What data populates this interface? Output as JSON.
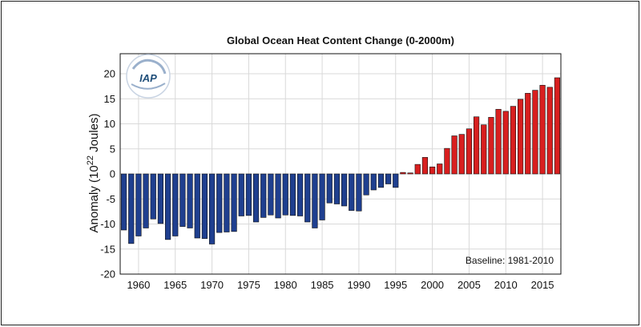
{
  "chart_data": {
    "type": "bar",
    "title": "Global Ocean Heat Content Change (0-2000m)",
    "ylabel_pre": "Anomaly (10",
    "ylabel_sup": "22",
    "ylabel_post": " Joules)",
    "xlabel": "",
    "ylim": [
      -20,
      24
    ],
    "xlim": [
      1957.5,
      2017.5
    ],
    "yticks": [
      -20,
      -15,
      -10,
      -5,
      0,
      5,
      10,
      15,
      20
    ],
    "xticks": [
      1960,
      1965,
      1970,
      1975,
      1980,
      1985,
      1990,
      1995,
      2000,
      2005,
      2010,
      2015
    ],
    "grid": true,
    "note": "Baseline: 1981-2010",
    "logo_text": "IAP",
    "colors": {
      "negative": "#1f3f8f",
      "positive": "#d81f1f",
      "edge": "#111111",
      "grid": "#d9d9d9"
    },
    "years": [
      1958,
      1959,
      1960,
      1961,
      1962,
      1963,
      1964,
      1965,
      1966,
      1967,
      1968,
      1969,
      1970,
      1971,
      1972,
      1973,
      1974,
      1975,
      1976,
      1977,
      1978,
      1979,
      1980,
      1981,
      1982,
      1983,
      1984,
      1985,
      1986,
      1987,
      1988,
      1989,
      1990,
      1991,
      1992,
      1993,
      1994,
      1995,
      1996,
      1997,
      1998,
      1999,
      2000,
      2001,
      2002,
      2003,
      2004,
      2005,
      2006,
      2007,
      2008,
      2009,
      2010,
      2011,
      2012,
      2013,
      2014,
      2015,
      2016,
      2017
    ],
    "values": [
      -11.2,
      -13.9,
      -12.4,
      -10.8,
      -9.0,
      -9.9,
      -13.1,
      -12.4,
      -10.5,
      -10.8,
      -12.8,
      -12.9,
      -14.0,
      -11.7,
      -11.6,
      -11.5,
      -8.4,
      -8.3,
      -9.6,
      -8.7,
      -8.2,
      -8.8,
      -8.2,
      -8.3,
      -8.4,
      -9.6,
      -10.8,
      -9.2,
      -5.8,
      -6.0,
      -6.4,
      -7.3,
      -7.4,
      -4.2,
      -3.2,
      -2.7,
      -2.0,
      -2.7,
      0.3,
      0.2,
      1.9,
      3.3,
      1.4,
      2.0,
      5.1,
      7.6,
      7.9,
      9.0,
      11.4,
      9.8,
      11.3,
      12.9,
      12.5,
      13.5,
      14.9,
      16.1,
      16.7,
      17.7,
      17.3,
      19.2
    ]
  }
}
